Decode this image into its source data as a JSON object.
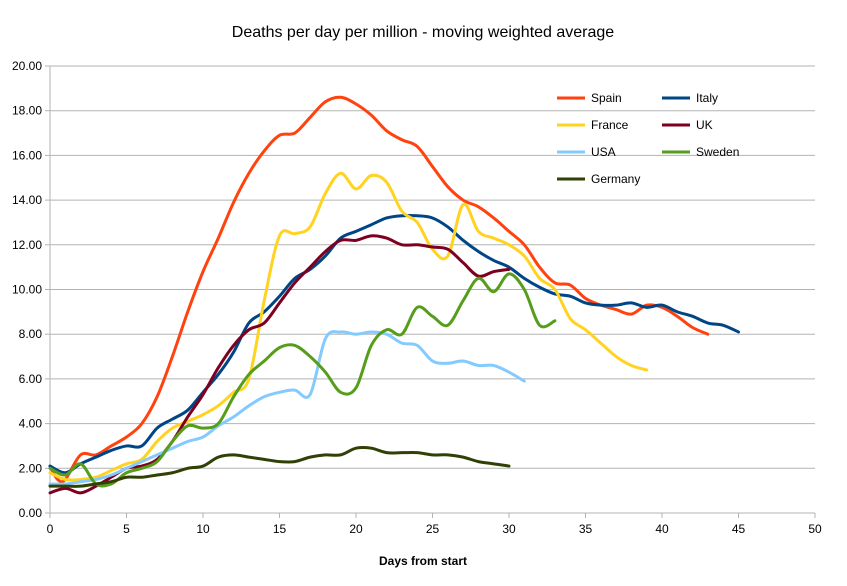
{
  "chart_data": {
    "type": "line",
    "title": "Deaths per day per million - moving weighted average",
    "xlabel": "Days from start",
    "ylabel": "",
    "xlim": [
      0,
      50
    ],
    "ylim": [
      0,
      20
    ],
    "x_ticks": [
      0,
      5,
      10,
      15,
      20,
      25,
      30,
      35,
      40,
      45,
      50
    ],
    "y_ticks": [
      0,
      2,
      4,
      6,
      8,
      10,
      12,
      14,
      16,
      18,
      20
    ],
    "x_tick_labels": [
      "0",
      "5",
      "10",
      "15",
      "20",
      "25",
      "30",
      "35",
      "40",
      "45",
      "50"
    ],
    "y_tick_labels": [
      "0.00",
      "2.00",
      "4.00",
      "6.00",
      "8.00",
      "10.00",
      "12.00",
      "14.00",
      "16.00",
      "18.00",
      "20.00"
    ],
    "grid": "horizontal",
    "legend_position": "top-right",
    "series": [
      {
        "name": "Spain",
        "color": "#ff420e",
        "points": [
          [
            0,
            2.1
          ],
          [
            0.5,
            1.5
          ],
          [
            1,
            1.5
          ],
          [
            2,
            2.6
          ],
          [
            3,
            2.6
          ],
          [
            4,
            3
          ],
          [
            5,
            3.4
          ],
          [
            6,
            4
          ],
          [
            7,
            5.2
          ],
          [
            8,
            7
          ],
          [
            9,
            9
          ],
          [
            10,
            10.8
          ],
          [
            11,
            12.3
          ],
          [
            12,
            13.9
          ],
          [
            13,
            15.2
          ],
          [
            14,
            16.2
          ],
          [
            15,
            16.9
          ],
          [
            16,
            17.0
          ],
          [
            17,
            17.7
          ],
          [
            18,
            18.4
          ],
          [
            19,
            18.6
          ],
          [
            20,
            18.3
          ],
          [
            21,
            17.8
          ],
          [
            22,
            17.1
          ],
          [
            23,
            16.7
          ],
          [
            24,
            16.4
          ],
          [
            25,
            15.5
          ],
          [
            26,
            14.6
          ],
          [
            27,
            14.0
          ],
          [
            28,
            13.7
          ],
          [
            29,
            13.2
          ],
          [
            30,
            12.6
          ],
          [
            31,
            12
          ],
          [
            32,
            11
          ],
          [
            33,
            10.3
          ],
          [
            34,
            10.2
          ],
          [
            35,
            9.6
          ],
          [
            36,
            9.3
          ],
          [
            37,
            9.1
          ],
          [
            38,
            8.9
          ],
          [
            39,
            9.3
          ],
          [
            40,
            9.2
          ],
          [
            41,
            8.8
          ],
          [
            42,
            8.3
          ],
          [
            43,
            8.0
          ]
        ]
      },
      {
        "name": "Italy",
        "color": "#004586",
        "points": [
          [
            0,
            2.1
          ],
          [
            1,
            1.8
          ],
          [
            2,
            2.2
          ],
          [
            3,
            2.5
          ],
          [
            4,
            2.8
          ],
          [
            5,
            3.0
          ],
          [
            6,
            3.0
          ],
          [
            7,
            3.8
          ],
          [
            8,
            4.2
          ],
          [
            9,
            4.6
          ],
          [
            10,
            5.4
          ],
          [
            11,
            6.2
          ],
          [
            12,
            7.2
          ],
          [
            13,
            8.5
          ],
          [
            14,
            9.0
          ],
          [
            15,
            9.7
          ],
          [
            16,
            10.5
          ],
          [
            17,
            10.9
          ],
          [
            18,
            11.5
          ],
          [
            19,
            12.3
          ],
          [
            20,
            12.6
          ],
          [
            21,
            12.9
          ],
          [
            22,
            13.2
          ],
          [
            23,
            13.3
          ],
          [
            24,
            13.3
          ],
          [
            25,
            13.2
          ],
          [
            26,
            12.8
          ],
          [
            27,
            12.2
          ],
          [
            28,
            11.7
          ],
          [
            29,
            11.3
          ],
          [
            30,
            11.0
          ],
          [
            31,
            10.5
          ],
          [
            32,
            10.1
          ],
          [
            33,
            9.8
          ],
          [
            34,
            9.7
          ],
          [
            35,
            9.4
          ],
          [
            36,
            9.3
          ],
          [
            37,
            9.3
          ],
          [
            38,
            9.4
          ],
          [
            39,
            9.2
          ],
          [
            40,
            9.3
          ],
          [
            41,
            9.0
          ],
          [
            42,
            8.8
          ],
          [
            43,
            8.5
          ],
          [
            44,
            8.4
          ],
          [
            45,
            8.1
          ]
        ]
      },
      {
        "name": "France",
        "color": "#ffd320",
        "points": [
          [
            0,
            1.8
          ],
          [
            1,
            1.5
          ],
          [
            2,
            1.5
          ],
          [
            3,
            1.6
          ],
          [
            4,
            1.9
          ],
          [
            5,
            2.2
          ],
          [
            6,
            2.4
          ],
          [
            7,
            3.2
          ],
          [
            8,
            3.8
          ],
          [
            9,
            4.1
          ],
          [
            10,
            4.4
          ],
          [
            11,
            4.8
          ],
          [
            12,
            5.4
          ],
          [
            13,
            6.0
          ],
          [
            14,
            9.5
          ],
          [
            15,
            12.4
          ],
          [
            16,
            12.5
          ],
          [
            17,
            12.8
          ],
          [
            18,
            14.3
          ],
          [
            19,
            15.2
          ],
          [
            20,
            14.5
          ],
          [
            21,
            15.1
          ],
          [
            22,
            14.8
          ],
          [
            23,
            13.5
          ],
          [
            24,
            13.0
          ],
          [
            25,
            11.8
          ],
          [
            26,
            11.5
          ],
          [
            27,
            13.8
          ],
          [
            28,
            12.6
          ],
          [
            29,
            12.3
          ],
          [
            30,
            12.0
          ],
          [
            31,
            11.5
          ],
          [
            32,
            10.5
          ],
          [
            33,
            10.0
          ],
          [
            34,
            8.7
          ],
          [
            35,
            8.2
          ],
          [
            36,
            7.6
          ],
          [
            37,
            7.0
          ],
          [
            38,
            6.6
          ],
          [
            39,
            6.4
          ]
        ]
      },
      {
        "name": "UK",
        "color": "#7e0021",
        "points": [
          [
            0,
            0.9
          ],
          [
            1,
            1.1
          ],
          [
            2,
            0.9
          ],
          [
            3,
            1.2
          ],
          [
            4,
            1.6
          ],
          [
            5,
            2.0
          ],
          [
            6,
            2.1
          ],
          [
            7,
            2.4
          ],
          [
            8,
            3.2
          ],
          [
            9,
            4.3
          ],
          [
            10,
            5.3
          ],
          [
            11,
            6.5
          ],
          [
            12,
            7.5
          ],
          [
            13,
            8.2
          ],
          [
            14,
            8.5
          ],
          [
            15,
            9.4
          ],
          [
            16,
            10.3
          ],
          [
            17,
            11.0
          ],
          [
            18,
            11.7
          ],
          [
            19,
            12.2
          ],
          [
            20,
            12.2
          ],
          [
            21,
            12.4
          ],
          [
            22,
            12.3
          ],
          [
            23,
            12.0
          ],
          [
            24,
            12.0
          ],
          [
            25,
            11.9
          ],
          [
            26,
            11.8
          ],
          [
            27,
            11.2
          ],
          [
            28,
            10.6
          ],
          [
            29,
            10.8
          ],
          [
            30,
            10.9
          ]
        ]
      },
      {
        "name": "USA",
        "color": "#83caff",
        "points": [
          [
            0,
            1.3
          ],
          [
            1,
            1.3
          ],
          [
            2,
            1.4
          ],
          [
            3,
            1.5
          ],
          [
            4,
            1.7
          ],
          [
            5,
            2.0
          ],
          [
            6,
            2.3
          ],
          [
            7,
            2.6
          ],
          [
            8,
            2.9
          ],
          [
            9,
            3.2
          ],
          [
            10,
            3.4
          ],
          [
            11,
            3.9
          ],
          [
            12,
            4.3
          ],
          [
            13,
            4.8
          ],
          [
            14,
            5.2
          ],
          [
            15,
            5.4
          ],
          [
            16,
            5.5
          ],
          [
            17,
            5.3
          ],
          [
            18,
            7.8
          ],
          [
            19,
            8.1
          ],
          [
            20,
            8.0
          ],
          [
            21,
            8.1
          ],
          [
            22,
            8.0
          ],
          [
            23,
            7.6
          ],
          [
            24,
            7.5
          ],
          [
            25,
            6.8
          ],
          [
            26,
            6.7
          ],
          [
            27,
            6.8
          ],
          [
            28,
            6.6
          ],
          [
            29,
            6.6
          ],
          [
            30,
            6.3
          ],
          [
            31,
            5.9
          ]
        ]
      },
      {
        "name": "Sweden",
        "color": "#579d1c",
        "points": [
          [
            0,
            2.0
          ],
          [
            1,
            1.7
          ],
          [
            2,
            2.2
          ],
          [
            3,
            1.3
          ],
          [
            4,
            1.3
          ],
          [
            5,
            1.8
          ],
          [
            6,
            2.0
          ],
          [
            7,
            2.3
          ],
          [
            8,
            3.2
          ],
          [
            9,
            3.9
          ],
          [
            10,
            3.8
          ],
          [
            11,
            4.0
          ],
          [
            12,
            5.2
          ],
          [
            13,
            6.2
          ],
          [
            14,
            6.8
          ],
          [
            15,
            7.4
          ],
          [
            16,
            7.5
          ],
          [
            17,
            7.0
          ],
          [
            18,
            6.3
          ],
          [
            19,
            5.4
          ],
          [
            20,
            5.6
          ],
          [
            21,
            7.5
          ],
          [
            22,
            8.2
          ],
          [
            23,
            8.0
          ],
          [
            24,
            9.2
          ],
          [
            25,
            8.8
          ],
          [
            26,
            8.4
          ],
          [
            27,
            9.5
          ],
          [
            28,
            10.5
          ],
          [
            29,
            9.9
          ],
          [
            30,
            10.7
          ],
          [
            31,
            10.0
          ],
          [
            32,
            8.4
          ],
          [
            33,
            8.6
          ]
        ]
      },
      {
        "name": "Germany",
        "color": "#314004",
        "points": [
          [
            0,
            1.2
          ],
          [
            1,
            1.2
          ],
          [
            2,
            1.2
          ],
          [
            3,
            1.3
          ],
          [
            4,
            1.4
          ],
          [
            5,
            1.6
          ],
          [
            6,
            1.6
          ],
          [
            7,
            1.7
          ],
          [
            8,
            1.8
          ],
          [
            9,
            2.0
          ],
          [
            10,
            2.1
          ],
          [
            11,
            2.5
          ],
          [
            12,
            2.6
          ],
          [
            13,
            2.5
          ],
          [
            14,
            2.4
          ],
          [
            15,
            2.3
          ],
          [
            16,
            2.3
          ],
          [
            17,
            2.5
          ],
          [
            18,
            2.6
          ],
          [
            19,
            2.6
          ],
          [
            20,
            2.9
          ],
          [
            21,
            2.9
          ],
          [
            22,
            2.7
          ],
          [
            23,
            2.7
          ],
          [
            24,
            2.7
          ],
          [
            25,
            2.6
          ],
          [
            26,
            2.6
          ],
          [
            27,
            2.5
          ],
          [
            28,
            2.3
          ],
          [
            29,
            2.2
          ],
          [
            30,
            2.1
          ]
        ]
      }
    ]
  }
}
